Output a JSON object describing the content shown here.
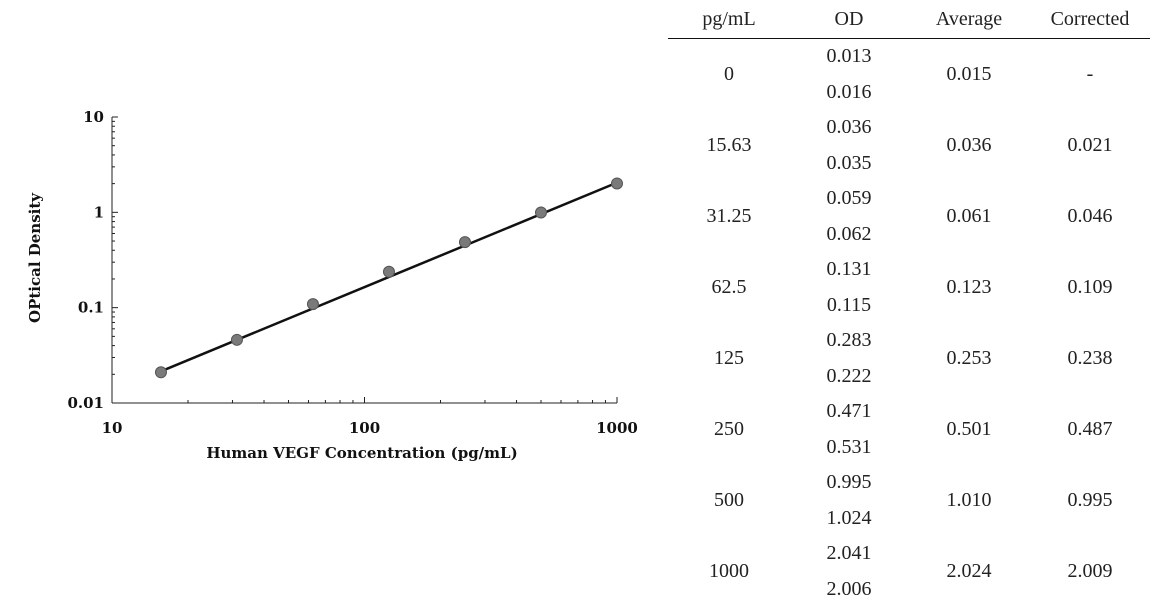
{
  "chart_data": {
    "type": "scatter",
    "xlabel": "Human VEGF  Concentration (pg/mL)",
    "ylabel": "OPtical Density",
    "x_scale": "log",
    "y_scale": "log",
    "xlim": [
      10,
      1000
    ],
    "ylim": [
      0.01,
      10
    ],
    "x_ticks": [
      "10",
      "100",
      "1000"
    ],
    "y_ticks": [
      "10",
      "1",
      "0.1",
      "0.01"
    ],
    "grid": false,
    "points": [
      {
        "x": 15.63,
        "y": 0.021
      },
      {
        "x": 31.25,
        "y": 0.046
      },
      {
        "x": 62.5,
        "y": 0.109
      },
      {
        "x": 125,
        "y": 0.238
      },
      {
        "x": 250,
        "y": 0.487
      },
      {
        "x": 500,
        "y": 0.995
      },
      {
        "x": 1000,
        "y": 2.009
      }
    ],
    "fit_line": {
      "x": [
        15.63,
        1000
      ],
      "y": [
        0.0215,
        2.05
      ]
    }
  },
  "table": {
    "headers": [
      "pg/mL",
      "OD",
      "Average",
      "Corrected"
    ],
    "rows": [
      {
        "conc": "0",
        "od": [
          "0.013",
          "0.016"
        ],
        "avg": "0.015",
        "corr": "-"
      },
      {
        "conc": "15.63",
        "od": [
          "0.036",
          "0.035"
        ],
        "avg": "0.036",
        "corr": "0.021"
      },
      {
        "conc": "31.25",
        "od": [
          "0.059",
          "0.062"
        ],
        "avg": "0.061",
        "corr": "0.046"
      },
      {
        "conc": "62.5",
        "od": [
          "0.131",
          "0.115"
        ],
        "avg": "0.123",
        "corr": "0.109"
      },
      {
        "conc": "125",
        "od": [
          "0.283",
          "0.222"
        ],
        "avg": "0.253",
        "corr": "0.238"
      },
      {
        "conc": "250",
        "od": [
          "0.471",
          "0.531"
        ],
        "avg": "0.501",
        "corr": "0.487"
      },
      {
        "conc": "500",
        "od": [
          "0.995",
          "1.024"
        ],
        "avg": "1.010",
        "corr": "0.995"
      },
      {
        "conc": "1000",
        "od": [
          "2.041",
          "2.006"
        ],
        "avg": "2.024",
        "corr": "2.009"
      }
    ]
  }
}
